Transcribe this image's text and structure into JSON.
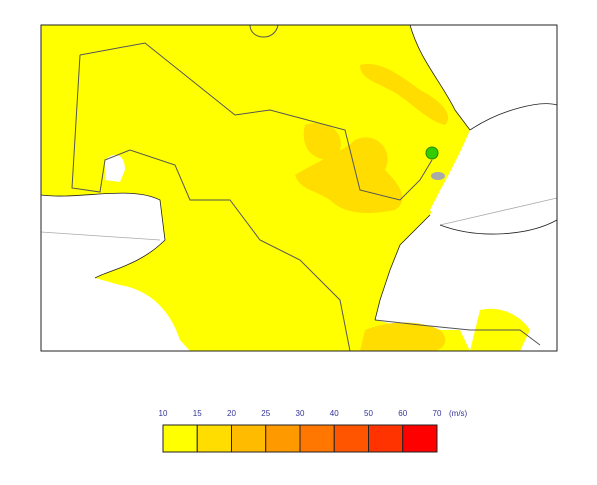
{
  "legend": {
    "ticks": [
      10,
      15,
      20,
      25,
      30,
      40,
      50,
      60,
      70
    ],
    "unit": "(m/s)",
    "colors": [
      "#ffff00",
      "#ffdd00",
      "#ffbb00",
      "#ff9900",
      "#ff7700",
      "#ff5500",
      "#ff3300",
      "#ff0000"
    ]
  }
}
